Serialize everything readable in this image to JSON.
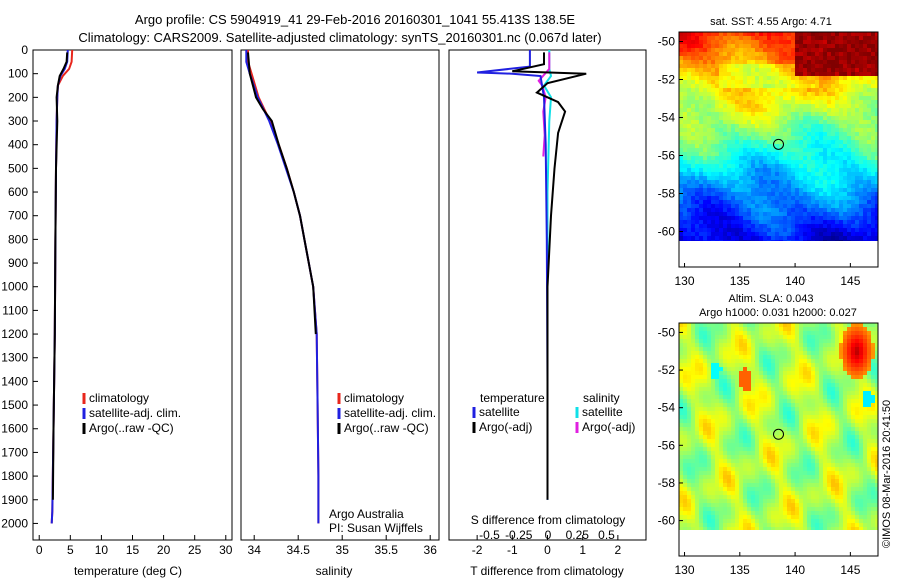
{
  "header": {
    "line1": "Argo profile: CS 5904919_41 29-Feb-2016 20160301_1041 55.413S 138.5E",
    "line2": "Climatology: CARS2009. Satellite-adjusted climatology: synTS_20160301.nc (0.067d later)"
  },
  "credit": {
    "owner": "Argo Australia",
    "pi": "PI: Susan Wijffels",
    "stamp": "©IMOS 08-Mar-2016 20:41:50"
  },
  "colors": {
    "climatology": "#e8261c",
    "satellite": "#2020e0",
    "argo": "#000000",
    "cyan": "#10e0e8",
    "magenta": "#e020e0"
  },
  "chart_data": [
    {
      "type": "line",
      "name": "temperature-panel",
      "xlabel": "temperature (deg C)",
      "ylabel": "",
      "xlim": [
        -1,
        31
      ],
      "ylim": [
        2070,
        0
      ],
      "xticks": [
        0,
        5,
        10,
        15,
        20,
        25,
        30
      ],
      "yticks": [
        0,
        100,
        200,
        300,
        400,
        500,
        600,
        700,
        800,
        900,
        1000,
        1100,
        1200,
        1300,
        1400,
        1500,
        1600,
        1700,
        1800,
        1900,
        2000
      ],
      "legend": [
        "climatology",
        "satellite-adj. clim.",
        "Argo(..raw -QC)"
      ],
      "series": [
        {
          "name": "climatology",
          "color": "#e8261c",
          "x": [
            5.3,
            5.2,
            4.8,
            3.8,
            3.0,
            2.9,
            2.8,
            2.7,
            2.6,
            2.5,
            2.3,
            2.1,
            2.0
          ],
          "y": [
            0,
            50,
            80,
            110,
            150,
            200,
            300,
            500,
            800,
            1200,
            1600,
            1950,
            2000
          ]
        },
        {
          "name": "satellite-adj. clim.",
          "color": "#2020e0",
          "x": [
            4.6,
            4.5,
            4.1,
            3.4,
            3.0,
            2.9,
            2.8,
            2.7,
            2.6,
            2.5,
            2.3,
            2.1,
            2.0
          ],
          "y": [
            0,
            50,
            80,
            110,
            150,
            200,
            300,
            500,
            800,
            1200,
            1600,
            1950,
            2000
          ]
        },
        {
          "name": "Argo(..raw -QC)",
          "color": "#000000",
          "x": [
            4.5,
            4.4,
            3.9,
            3.3,
            3.0,
            2.8,
            2.9,
            2.7,
            2.6,
            2.5,
            2.3,
            2.2
          ],
          "y": [
            10,
            50,
            80,
            110,
            150,
            200,
            300,
            500,
            800,
            1200,
            1600,
            1900
          ]
        }
      ]
    },
    {
      "type": "line",
      "name": "salinity-panel",
      "xlabel": "salinity",
      "ylabel": "",
      "xlim": [
        33.85,
        36.1
      ],
      "ylim": [
        2070,
        0
      ],
      "xticks": [
        34,
        34.5,
        35,
        35.5,
        36
      ],
      "xticklabels": [
        "34",
        "34.5",
        "35",
        "35.5",
        "36"
      ],
      "legend": [
        "climatology",
        "satellite-adj. clim.",
        "Argo(..raw -QC)"
      ],
      "series": [
        {
          "name": "climatology",
          "color": "#e8261c",
          "x": [
            33.93,
            33.93,
            33.97,
            34.05,
            34.18,
            34.28,
            34.37,
            34.45,
            34.52,
            34.57,
            34.62,
            34.67,
            34.71,
            34.72,
            34.73,
            34.73
          ],
          "y": [
            0,
            50,
            100,
            200,
            300,
            400,
            500,
            600,
            700,
            800,
            900,
            1000,
            1200,
            1500,
            1800,
            2000
          ]
        },
        {
          "name": "satellite-adj. clim.",
          "color": "#2020e0",
          "x": [
            33.91,
            33.91,
            33.95,
            34.04,
            34.17,
            34.27,
            34.36,
            34.45,
            34.52,
            34.57,
            34.62,
            34.67,
            34.71,
            34.72,
            34.73,
            34.73
          ],
          "y": [
            0,
            50,
            100,
            200,
            300,
            400,
            500,
            600,
            700,
            800,
            900,
            1000,
            1200,
            1500,
            1800,
            2000
          ]
        },
        {
          "name": "Argo(..raw -QC)",
          "color": "#000000",
          "x": [
            33.93,
            33.95,
            34.02,
            34.1,
            34.2,
            34.28,
            34.37,
            34.45,
            34.52,
            34.57,
            34.62,
            34.67,
            34.7
          ],
          "y": [
            10,
            100,
            200,
            250,
            300,
            400,
            500,
            600,
            700,
            800,
            900,
            1000,
            1200
          ]
        }
      ]
    },
    {
      "type": "line",
      "name": "difference-panel",
      "xlabel": "T difference from climatology",
      "xlabel_top": "S difference from climatology",
      "ylabel": "",
      "xlim": [
        -2.8,
        2.8
      ],
      "ylim": [
        2070,
        0
      ],
      "xticks": [
        -2,
        -1,
        0,
        1,
        2
      ],
      "sticks": [
        -0.5,
        -0.25,
        0,
        0.25,
        0.5
      ],
      "sticklabels": [
        "-0.5",
        "-0.25",
        "0",
        "0.25",
        "0.5"
      ],
      "legend_t_title": "temperature",
      "legend_s_title": "salinity",
      "legend": [
        "satellite",
        "Argo(-adj)",
        "satellite",
        "Argo(-adj)"
      ],
      "series": [
        {
          "name": "satellite",
          "color": "#2020e0",
          "x": [
            -0.5,
            -0.5,
            -2.0,
            -1.0,
            -0.2,
            -0.1,
            -0.05,
            -0.02,
            0,
            0
          ],
          "y": [
            0,
            70,
            95,
            100,
            110,
            200,
            400,
            800,
            1400,
            1900
          ]
        },
        {
          "name": "Argo(-adj)",
          "color": "#000000",
          "x": [
            -0.1,
            -0.1,
            -1.0,
            1.1,
            0.0,
            -0.3,
            0.3,
            0.5,
            0.3,
            0.2,
            0.1,
            0.0,
            0.0
          ],
          "y": [
            10,
            60,
            90,
            100,
            140,
            180,
            220,
            260,
            350,
            500,
            700,
            1000,
            1900
          ]
        },
        {
          "name": "satellite",
          "color": "#10e0e8",
          "x": [
            0.05,
            0.05,
            0.1,
            -0.1,
            0.1,
            0.05,
            0.0,
            0.0,
            0.0
          ],
          "y": [
            0,
            80,
            110,
            150,
            200,
            300,
            600,
            1200,
            1900
          ]
        },
        {
          "name": "Argo(-adj)",
          "color": "#e020e0",
          "x": [
            0.05,
            0.05,
            -0.25,
            -0.15,
            -0.05,
            -0.12,
            -0.08,
            -0.12
          ],
          "y": [
            10,
            80,
            130,
            150,
            200,
            260,
            360,
            450
          ]
        }
      ]
    },
    {
      "type": "heatmap",
      "name": "sst-map",
      "title": "sat. SST: 4.55 Argo: 4.71",
      "xlim": [
        129.5,
        147.5
      ],
      "ylim": [
        -60.5,
        -49.5
      ],
      "xticks": [
        130,
        135,
        140,
        145
      ],
      "yticks": [
        -50,
        -52,
        -54,
        -56,
        -58,
        -60
      ],
      "marker": {
        "lon": 138.5,
        "lat": -55.413
      }
    },
    {
      "type": "heatmap",
      "name": "sla-map",
      "title": "Altim. SLA: 0.043",
      "subtitle": "Argo h1000: 0.031 h2000: 0.027",
      "xlim": [
        129.5,
        147.5
      ],
      "ylim": [
        -60.5,
        -49.5
      ],
      "xticks": [
        130,
        135,
        140,
        145
      ],
      "yticks": [
        -50,
        -52,
        -54,
        -56,
        -58,
        -60
      ],
      "marker": {
        "lon": 138.5,
        "lat": -55.413
      }
    }
  ]
}
